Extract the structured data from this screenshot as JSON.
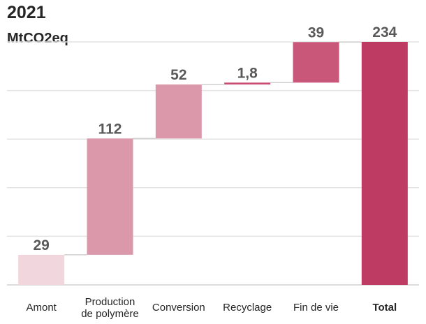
{
  "chart_data": {
    "type": "waterfall",
    "title": "2021",
    "ylabel": "MtCO2eq",
    "categories": [
      [
        "Amont"
      ],
      [
        "Production",
        "de polymère"
      ],
      [
        "Conversion"
      ],
      [
        "Recyclage"
      ],
      [
        "Fin de vie"
      ],
      [
        "Total"
      ]
    ],
    "values": [
      29,
      112,
      52,
      1.8,
      39,
      234
    ],
    "value_labels": [
      "29",
      "112",
      "52",
      "1,8",
      "39",
      "234"
    ],
    "is_total": [
      false,
      false,
      false,
      false,
      false,
      true
    ],
    "colors": [
      "#f2d6dd",
      "#dc98ab",
      "#dc98ab",
      "#c94d72",
      "#c9577a",
      "#be3c64"
    ],
    "ylim": [
      0,
      234
    ],
    "grid": true
  }
}
